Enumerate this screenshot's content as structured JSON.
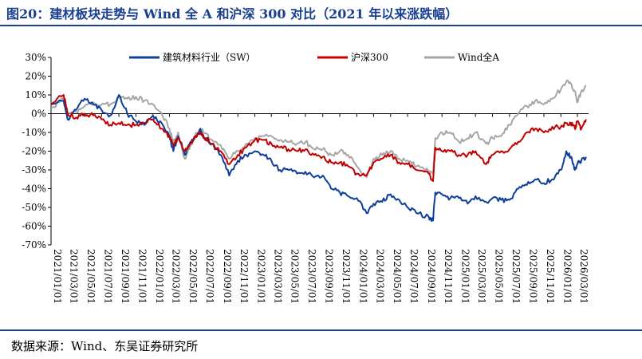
{
  "header": {
    "title": "图20：建材板块走势与 Wind 全 A 和沪深 300 对比（2021 年以来涨跌幅）"
  },
  "footer": {
    "source": "数据来源：Wind、东吴证券研究所"
  },
  "chart_data": {
    "type": "line",
    "title": "",
    "xlabel": "",
    "ylabel": "",
    "ylim": [
      -70,
      30
    ],
    "y_ticks": [
      "30%",
      "20%",
      "10%",
      "0%",
      "-10%",
      "-20%",
      "-30%",
      "-40%",
      "-50%",
      "-60%",
      "-70%"
    ],
    "y_tick_values": [
      30,
      20,
      10,
      0,
      -10,
      -20,
      -30,
      -40,
      -50,
      -60,
      -70
    ],
    "x_ticks": [
      "2021/01/01",
      "2021/03/01",
      "2021/05/01",
      "2021/07/01",
      "2021/09/01",
      "2021/11/01",
      "2022/01/01",
      "2022/03/01",
      "2022/05/01",
      "2022/07/01",
      "2022/09/01",
      "2022/11/01",
      "2023/01/01",
      "2023/03/01",
      "2023/05/01",
      "2023/07/01",
      "2023/09/01",
      "2023/11/01",
      "2024/01/01",
      "2024/03/01",
      "2024/05/01",
      "2024/07/01",
      "2024/09/01",
      "2024/11/01",
      "2025/01/01",
      "2025/03/01",
      "2025/05/01",
      "2025/07/01",
      "2025/09/01",
      "2025/11/01",
      "2026/01/01",
      "2026/03/01"
    ],
    "grid": false,
    "legend_position": "top",
    "series": [
      {
        "name": "建筑材料行业（SW）",
        "color": "#0d3f99",
        "x": [
          "2021/01/01",
          "2021/02/15",
          "2021/03/01",
          "2021/04/01",
          "2021/05/01",
          "2021/06/01",
          "2021/07/01",
          "2021/08/01",
          "2021/09/01",
          "2021/10/01",
          "2021/11/01",
          "2021/12/01",
          "2022/01/01",
          "2022/02/01",
          "2022/03/01",
          "2022/03/15",
          "2022/04/01",
          "2022/04/25",
          "2022/05/15",
          "2022/06/01",
          "2022/06/20",
          "2022/07/01",
          "2022/08/01",
          "2022/09/01",
          "2022/10/01",
          "2022/11/01",
          "2022/12/01",
          "2023/01/01",
          "2023/02/01",
          "2023/03/01",
          "2023/04/01",
          "2023/05/01",
          "2023/06/01",
          "2023/07/01",
          "2023/08/01",
          "2023/09/01",
          "2023/10/01",
          "2023/11/01",
          "2023/12/01",
          "2024/01/01",
          "2024/02/05",
          "2024/03/01",
          "2024/04/01",
          "2024/05/01",
          "2024/06/01",
          "2024/07/01",
          "2024/08/01",
          "2024/09/15",
          "2024/09/30",
          "2024/10/08",
          "2024/11/01",
          "2024/12/01",
          "2025/01/01",
          "2025/02/01",
          "2025/03/01",
          "2025/04/08",
          "2025/05/01",
          "2025/06/01",
          "2025/07/01",
          "2025/08/01",
          "2025/09/01",
          "2025/10/01",
          "2025/11/01",
          "2025/12/01",
          "2026/01/01",
          "2026/01/20",
          "2026/02/05",
          "2026/02/20",
          "2026/03/01",
          "2026/03/15",
          "2026/04/01"
        ],
        "values": [
          5,
          7,
          -3,
          2,
          8,
          5,
          2,
          -1,
          10,
          0,
          -4,
          -6,
          -1,
          -5,
          -12,
          -20,
          -12,
          -22,
          -15,
          -12,
          -8,
          -13,
          -16,
          -22,
          -33,
          -25,
          -22,
          -20,
          -22,
          -25,
          -30,
          -30,
          -32,
          -31,
          -34,
          -33,
          -40,
          -42,
          -44,
          -45,
          -53,
          -48,
          -47,
          -43,
          -46,
          -50,
          -53,
          -55,
          -57,
          -42,
          -43,
          -45,
          -45,
          -48,
          -44,
          -47,
          -45,
          -46,
          -46,
          -40,
          -38,
          -35,
          -37,
          -35,
          -30,
          -20,
          -23,
          -30,
          -27,
          -25,
          -23
        ]
      },
      {
        "name": "沪深300",
        "color": "#c00000",
        "x": [
          "2021/01/01",
          "2021/02/15",
          "2021/03/01",
          "2021/04/01",
          "2021/05/01",
          "2021/06/01",
          "2021/07/01",
          "2021/08/01",
          "2021/09/01",
          "2021/10/01",
          "2021/11/01",
          "2021/12/01",
          "2022/01/01",
          "2022/02/01",
          "2022/03/01",
          "2022/03/15",
          "2022/04/01",
          "2022/04/25",
          "2022/05/15",
          "2022/06/01",
          "2022/06/20",
          "2022/07/01",
          "2022/08/01",
          "2022/09/01",
          "2022/10/01",
          "2022/11/01",
          "2022/12/01",
          "2023/01/01",
          "2023/02/01",
          "2023/03/01",
          "2023/04/01",
          "2023/05/01",
          "2023/06/01",
          "2023/07/01",
          "2023/08/01",
          "2023/09/01",
          "2023/10/01",
          "2023/11/01",
          "2023/12/01",
          "2024/01/01",
          "2024/02/05",
          "2024/03/01",
          "2024/04/01",
          "2024/05/01",
          "2024/06/01",
          "2024/07/01",
          "2024/08/01",
          "2024/09/15",
          "2024/09/30",
          "2024/10/08",
          "2024/11/01",
          "2024/12/01",
          "2025/01/01",
          "2025/02/01",
          "2025/03/01",
          "2025/04/08",
          "2025/05/01",
          "2025/06/01",
          "2025/07/01",
          "2025/08/01",
          "2025/09/01",
          "2025/10/01",
          "2025/11/01",
          "2025/12/01",
          "2026/01/01",
          "2026/01/20",
          "2026/02/05",
          "2026/02/20",
          "2026/03/01",
          "2026/03/15",
          "2026/04/01"
        ],
        "values": [
          5,
          10,
          0,
          -2,
          0,
          -1,
          -3,
          -6,
          -5,
          -6,
          -6,
          -5,
          -3,
          -8,
          -12,
          -17,
          -13,
          -20,
          -16,
          -12,
          -10,
          -12,
          -16,
          -20,
          -27,
          -22,
          -18,
          -14,
          -14,
          -16,
          -18,
          -19,
          -20,
          -19,
          -22,
          -23,
          -26,
          -26,
          -28,
          -32,
          -33,
          -26,
          -24,
          -22,
          -26,
          -27,
          -30,
          -32,
          -36,
          -18,
          -20,
          -20,
          -22,
          -22,
          -20,
          -27,
          -22,
          -20,
          -19,
          -15,
          -10,
          -8,
          -10,
          -7,
          -7,
          -5,
          -5,
          -8,
          -4,
          -8,
          -3
        ]
      },
      {
        "name": "Wind全A",
        "color": "#a6a6a6",
        "x": [
          "2021/01/01",
          "2021/02/15",
          "2021/03/01",
          "2021/04/01",
          "2021/05/01",
          "2021/06/01",
          "2021/07/01",
          "2021/08/01",
          "2021/09/01",
          "2021/10/01",
          "2021/11/01",
          "2021/12/01",
          "2022/01/01",
          "2022/02/01",
          "2022/03/01",
          "2022/03/15",
          "2022/04/01",
          "2022/04/25",
          "2022/05/15",
          "2022/06/01",
          "2022/06/20",
          "2022/07/01",
          "2022/08/01",
          "2022/09/01",
          "2022/10/01",
          "2022/11/01",
          "2022/12/01",
          "2023/01/01",
          "2023/02/01",
          "2023/03/01",
          "2023/04/01",
          "2023/05/01",
          "2023/06/01",
          "2023/07/01",
          "2023/08/01",
          "2023/09/01",
          "2023/10/01",
          "2023/11/01",
          "2023/12/01",
          "2024/01/01",
          "2024/02/05",
          "2024/03/01",
          "2024/04/01",
          "2024/05/01",
          "2024/06/01",
          "2024/07/01",
          "2024/08/01",
          "2024/09/15",
          "2024/09/30",
          "2024/10/08",
          "2024/11/01",
          "2024/12/01",
          "2025/01/01",
          "2025/02/01",
          "2025/03/01",
          "2025/04/08",
          "2025/05/01",
          "2025/06/01",
          "2025/07/01",
          "2025/08/01",
          "2025/09/01",
          "2025/10/01",
          "2025/11/01",
          "2025/12/01",
          "2026/01/01",
          "2026/01/20",
          "2026/02/05",
          "2026/02/20",
          "2026/03/01",
          "2026/03/15",
          "2026/04/01"
        ],
        "values": [
          3,
          8,
          0,
          1,
          4,
          6,
          5,
          5,
          9,
          8,
          9,
          7,
          5,
          0,
          -8,
          -15,
          -10,
          -24,
          -17,
          -12,
          -8,
          -10,
          -14,
          -17,
          -24,
          -20,
          -16,
          -13,
          -12,
          -12,
          -14,
          -15,
          -16,
          -15,
          -19,
          -19,
          -22,
          -20,
          -22,
          -28,
          -34,
          -24,
          -22,
          -20,
          -24,
          -25,
          -28,
          -31,
          -32,
          -13,
          -10,
          -10,
          -15,
          -13,
          -10,
          -16,
          -13,
          -12,
          -6,
          0,
          4,
          7,
          5,
          8,
          13,
          17,
          16,
          12,
          6,
          12,
          15
        ]
      }
    ]
  }
}
